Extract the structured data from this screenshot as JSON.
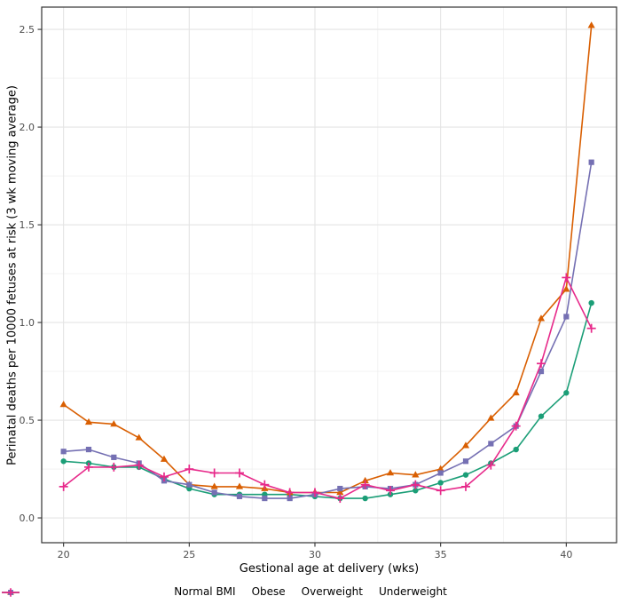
{
  "chart_data": {
    "type": "line",
    "title": "",
    "xlabel": "Gestional age at delivery (wks)",
    "ylabel": "Perinatal deaths per 10000 fetuses at risk (3 wk moving average)",
    "x": [
      20,
      21,
      22,
      23,
      24,
      25,
      26,
      27,
      28,
      29,
      30,
      31,
      32,
      33,
      34,
      35,
      36,
      37,
      38,
      39,
      40,
      41
    ],
    "x_ticks": [
      "20",
      "25",
      "30",
      "35",
      "40"
    ],
    "x_tick_values": [
      20,
      25,
      30,
      35,
      40
    ],
    "x_minor_values": [
      22.5,
      27.5,
      32.5,
      37.5
    ],
    "y_ticks": [
      "0.0",
      "0.5",
      "1.0",
      "1.5",
      "2.0",
      "2.5"
    ],
    "y_tick_values": [
      0.0,
      0.5,
      1.0,
      1.5,
      2.0,
      2.5
    ],
    "y_minor_values": [
      0.25,
      0.75,
      1.25,
      1.75,
      2.25
    ],
    "xlim": [
      19.13,
      42.0
    ],
    "ylim": [
      -0.127,
      2.614
    ],
    "grid": true,
    "legend_position": "bottom",
    "panel_border_color": "#333333",
    "grid_major_color": "#e4e4e4",
    "grid_minor_color": "#f0f0f0",
    "tick_label_color": "#4d4d4d",
    "series": [
      {
        "name": "Normal BMI",
        "color": "#1B9E77",
        "marker": "circle",
        "values": [
          0.29,
          0.28,
          0.26,
          0.26,
          0.2,
          0.15,
          0.12,
          0.12,
          0.12,
          0.12,
          0.11,
          0.1,
          0.1,
          0.12,
          0.14,
          0.18,
          0.22,
          0.28,
          0.35,
          0.52,
          0.64,
          1.1
        ]
      },
      {
        "name": "Obese",
        "color": "#D95F02",
        "marker": "triangle",
        "values": [
          0.58,
          0.49,
          0.48,
          0.41,
          0.3,
          0.17,
          0.16,
          0.16,
          0.15,
          0.13,
          0.13,
          0.13,
          0.19,
          0.23,
          0.22,
          0.25,
          0.37,
          0.51,
          0.64,
          1.02,
          1.17,
          2.52
        ]
      },
      {
        "name": "Overweight",
        "color": "#7570B3",
        "marker": "square",
        "values": [
          0.34,
          0.35,
          0.31,
          0.28,
          0.19,
          0.17,
          0.13,
          0.11,
          0.1,
          0.1,
          0.12,
          0.15,
          0.16,
          0.15,
          0.17,
          0.23,
          0.29,
          0.38,
          0.47,
          0.75,
          1.03,
          1.82
        ]
      },
      {
        "name": "Underweight",
        "color": "#E7298A",
        "marker": "plus",
        "values": [
          0.16,
          0.26,
          0.26,
          0.27,
          0.21,
          0.25,
          0.23,
          0.23,
          0.17,
          0.13,
          0.13,
          0.1,
          0.17,
          0.14,
          0.17,
          0.14,
          0.16,
          0.27,
          0.47,
          0.79,
          1.23,
          0.97
        ]
      }
    ]
  }
}
